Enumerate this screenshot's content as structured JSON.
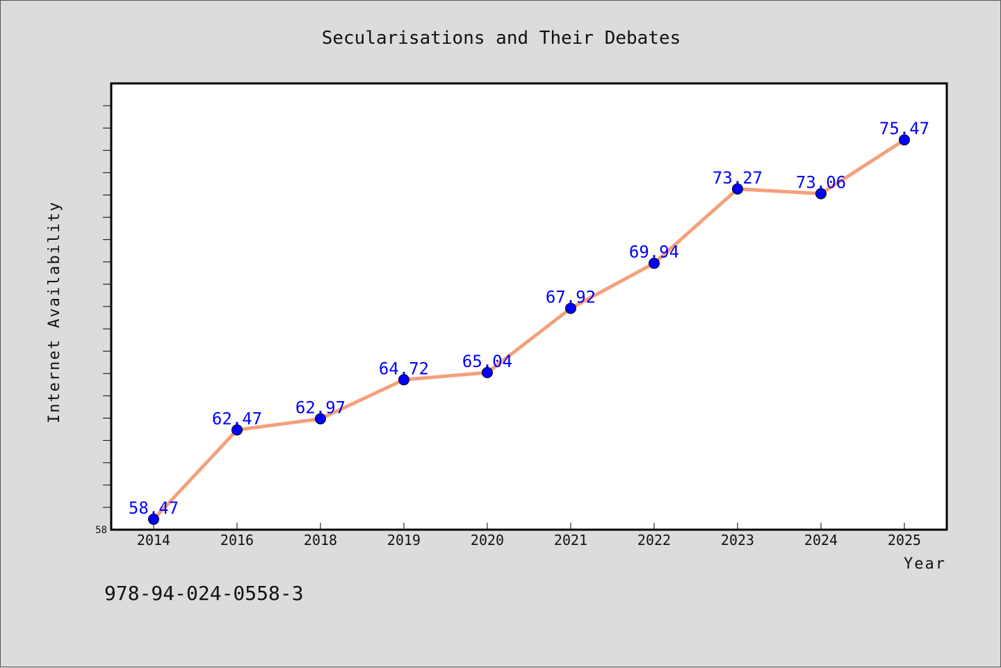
{
  "chart_data": {
    "type": "line",
    "title": "Secularisations and Their Debates",
    "xlabel": "Year",
    "ylabel": "Internet Availability",
    "categories": [
      "2014",
      "2016",
      "2018",
      "2019",
      "2020",
      "2021",
      "2022",
      "2023",
      "2024",
      "2025"
    ],
    "series": [
      {
        "values": [
          58.47,
          62.47,
          62.97,
          64.72,
          65.04,
          67.92,
          69.94,
          73.27,
          73.06,
          75.47
        ],
        "labels": [
          "58.47",
          "62.47",
          "62.97",
          "64.72",
          "65.04",
          "67.92",
          "69.94",
          "73.27",
          "73.06",
          "75.47"
        ]
      }
    ],
    "ylim": [
      58,
      78
    ],
    "yticks_labeled": [
      "58"
    ],
    "grid": false,
    "line_color": "#f4a07c",
    "marker_color": "#0000ff",
    "label_color": "#0000ff"
  },
  "footer": {
    "isbn": "978-94-024-0558-3"
  }
}
